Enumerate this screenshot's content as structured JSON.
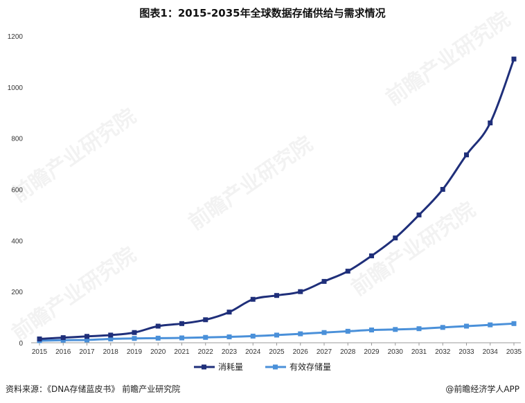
{
  "title": "图表1：2015-2035年全球数据存储供给与需求情况",
  "footer": {
    "source": "资料来源：《DNA存储蓝皮书》 前瞻产业研究院",
    "brand": "@前瞻经济学人APP"
  },
  "watermark_text": "前瞻产业研究院",
  "colors": {
    "series1": "#1f2f7a",
    "series2": "#4a90d9",
    "axis": "#999999"
  },
  "chart_data": {
    "type": "line",
    "title": "图表1：2015-2035年全球数据存储供给与需求情况",
    "xlabel": "",
    "ylabel": "",
    "ylim": [
      0,
      1200
    ],
    "yticks": [
      0,
      200,
      400,
      600,
      800,
      1000,
      1200
    ],
    "grid": false,
    "legend": "bottom",
    "x": [
      "2015",
      "2016",
      "2017",
      "2018",
      "2019",
      "2020",
      "2021",
      "2022",
      "2023",
      "2024",
      "2025",
      "2026",
      "2027",
      "2028",
      "2029",
      "2030",
      "2031",
      "2032",
      "2033",
      "2034",
      "2035"
    ],
    "series": [
      {
        "name": "消耗量",
        "color": "#1f2f7a",
        "values": [
          15,
          20,
          25,
          30,
          40,
          65,
          75,
          90,
          120,
          170,
          185,
          200,
          240,
          280,
          340,
          410,
          500,
          600,
          735,
          860,
          1110
        ]
      },
      {
        "name": "有效存储量",
        "color": "#4a90d9",
        "values": [
          8,
          10,
          11,
          15,
          17,
          18,
          19,
          21,
          23,
          26,
          30,
          35,
          40,
          45,
          50,
          52,
          55,
          60,
          65,
          70,
          75
        ]
      }
    ]
  }
}
